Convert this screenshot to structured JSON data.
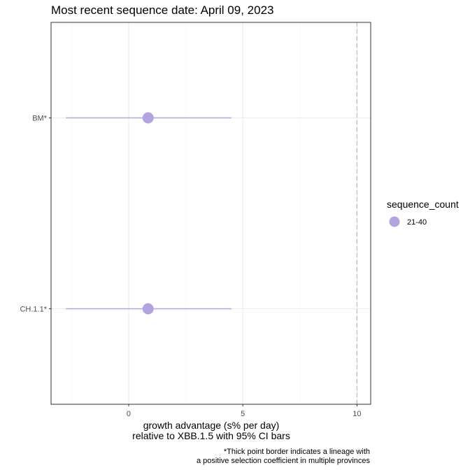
{
  "chart_data": {
    "type": "scatter",
    "title": "Most recent sequence date: April 09, 2023",
    "xlabel": [
      "growth advantage (s% per day)",
      "relative to  XBB.1.5  with 95% CI bars"
    ],
    "caption": [
      "*Thick point border indicates a lineage with",
      "a positive selection coefficient in multiple provinces"
    ],
    "xlim": [
      -3.4,
      10.6
    ],
    "x_ticks": [
      0,
      5,
      10
    ],
    "x_tick_labels": [
      "0",
      "5",
      "10"
    ],
    "categories": [
      "BM*",
      "CH.1.1*"
    ],
    "points": [
      {
        "lineage": "BM*",
        "x": 0.85,
        "ci_low": -2.75,
        "ci_high": 4.5,
        "sequence_count": "21-40"
      },
      {
        "lineage": "CH.1.1*",
        "x": 0.85,
        "ci_low": -2.75,
        "ci_high": 4.5,
        "sequence_count": "21-40"
      }
    ],
    "reference_line_x": 10,
    "grid": true,
    "legend": {
      "position": "right",
      "title": "sequence_count",
      "entries": [
        {
          "label": "21-40",
          "color": "#b3a4e0"
        }
      ]
    },
    "colors": {
      "point": "#b3a4e0",
      "ci_bar": "#b3a4e0",
      "grid": "#ebebeb",
      "panel_border": "#333333",
      "reference_line": "#bdbdbd"
    }
  }
}
